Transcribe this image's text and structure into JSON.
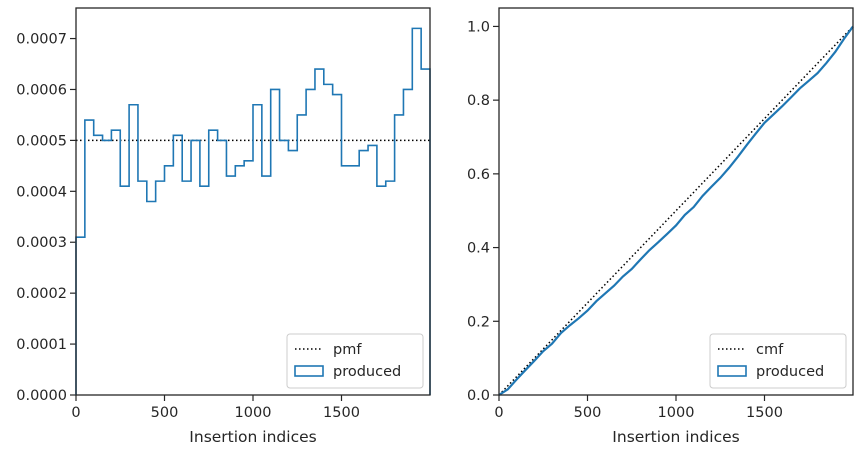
{
  "chart_data": [
    {
      "type": "histogram",
      "xlabel": "Insertion indices",
      "ylabel": "",
      "xlim": [
        0,
        2000
      ],
      "ylim": [
        0,
        0.00076
      ],
      "xticks": [
        0,
        500,
        1000,
        1500
      ],
      "xtick_labels": [
        "0",
        "500",
        "1000",
        "1500"
      ],
      "yticks": [
        0,
        0.0001,
        0.0002,
        0.0003,
        0.0004,
        0.0005,
        0.0006,
        0.0007
      ],
      "ytick_labels": [
        "0.0000",
        "0.0001",
        "0.0002",
        "0.0003",
        "0.0004",
        "0.0005",
        "0.0006",
        "0.0007"
      ],
      "grid": false,
      "legend": {
        "placement": "bottom-right",
        "entries": [
          "pmf",
          "produced"
        ]
      },
      "reference_line": {
        "name": "pmf",
        "style": "dotted",
        "color": "#000000",
        "y": 0.0005
      },
      "series": [
        {
          "name": "produced",
          "style": "step",
          "color": "#1f77b4",
          "bin_width": 50,
          "values": [
            0.00031,
            0.00054,
            0.00051,
            0.0005,
            0.00052,
            0.00041,
            0.00057,
            0.00042,
            0.00038,
            0.00042,
            0.00045,
            0.00051,
            0.00042,
            0.0005,
            0.00041,
            0.00052,
            0.0005,
            0.00043,
            0.00045,
            0.00046,
            0.00057,
            0.00043,
            0.0006,
            0.0005,
            0.00048,
            0.00055,
            0.0006,
            0.00064,
            0.00061,
            0.00059,
            0.00045,
            0.00045,
            0.00048,
            0.00049,
            0.00041,
            0.00042,
            0.00055,
            0.0006,
            0.00072,
            0.00064
          ]
        }
      ]
    },
    {
      "type": "line",
      "xlabel": "Insertion indices",
      "ylabel": "",
      "xlim": [
        0,
        2000
      ],
      "ylim": [
        0,
        1.05
      ],
      "xticks": [
        0,
        500,
        1000,
        1500
      ],
      "xtick_labels": [
        "0",
        "500",
        "1000",
        "1500"
      ],
      "yticks": [
        0,
        0.2,
        0.4,
        0.6,
        0.8,
        1.0
      ],
      "ytick_labels": [
        "0.0",
        "0.2",
        "0.4",
        "0.6",
        "0.8",
        "1.0"
      ],
      "grid": false,
      "legend": {
        "placement": "bottom-right",
        "entries": [
          "cmf",
          "produced"
        ]
      },
      "series": [
        {
          "name": "cmf",
          "style": "dotted",
          "color": "#000000",
          "x": [
            0,
            2000
          ],
          "y": [
            0,
            1.0
          ]
        },
        {
          "name": "produced",
          "style": "solid",
          "color": "#1f77b4",
          "x": [
            0,
            50,
            100,
            150,
            200,
            250,
            300,
            350,
            400,
            450,
            500,
            550,
            600,
            650,
            700,
            750,
            800,
            850,
            900,
            950,
            1000,
            1050,
            1100,
            1150,
            1200,
            1250,
            1300,
            1350,
            1400,
            1450,
            1500,
            1550,
            1600,
            1650,
            1700,
            1750,
            1800,
            1850,
            1900,
            1950,
            2000
          ],
          "y": [
            0,
            0.0155,
            0.0425,
            0.068,
            0.093,
            0.119,
            0.1395,
            0.168,
            0.189,
            0.208,
            0.229,
            0.2545,
            0.2755,
            0.2965,
            0.3215,
            0.342,
            0.368,
            0.393,
            0.4145,
            0.437,
            0.46,
            0.4885,
            0.51,
            0.54,
            0.565,
            0.589,
            0.6165,
            0.6465,
            0.6785,
            0.709,
            0.7385,
            0.761,
            0.7835,
            0.8075,
            0.832,
            0.8525,
            0.8735,
            0.901,
            0.931,
            0.967,
            1.0
          ]
        }
      ]
    }
  ]
}
